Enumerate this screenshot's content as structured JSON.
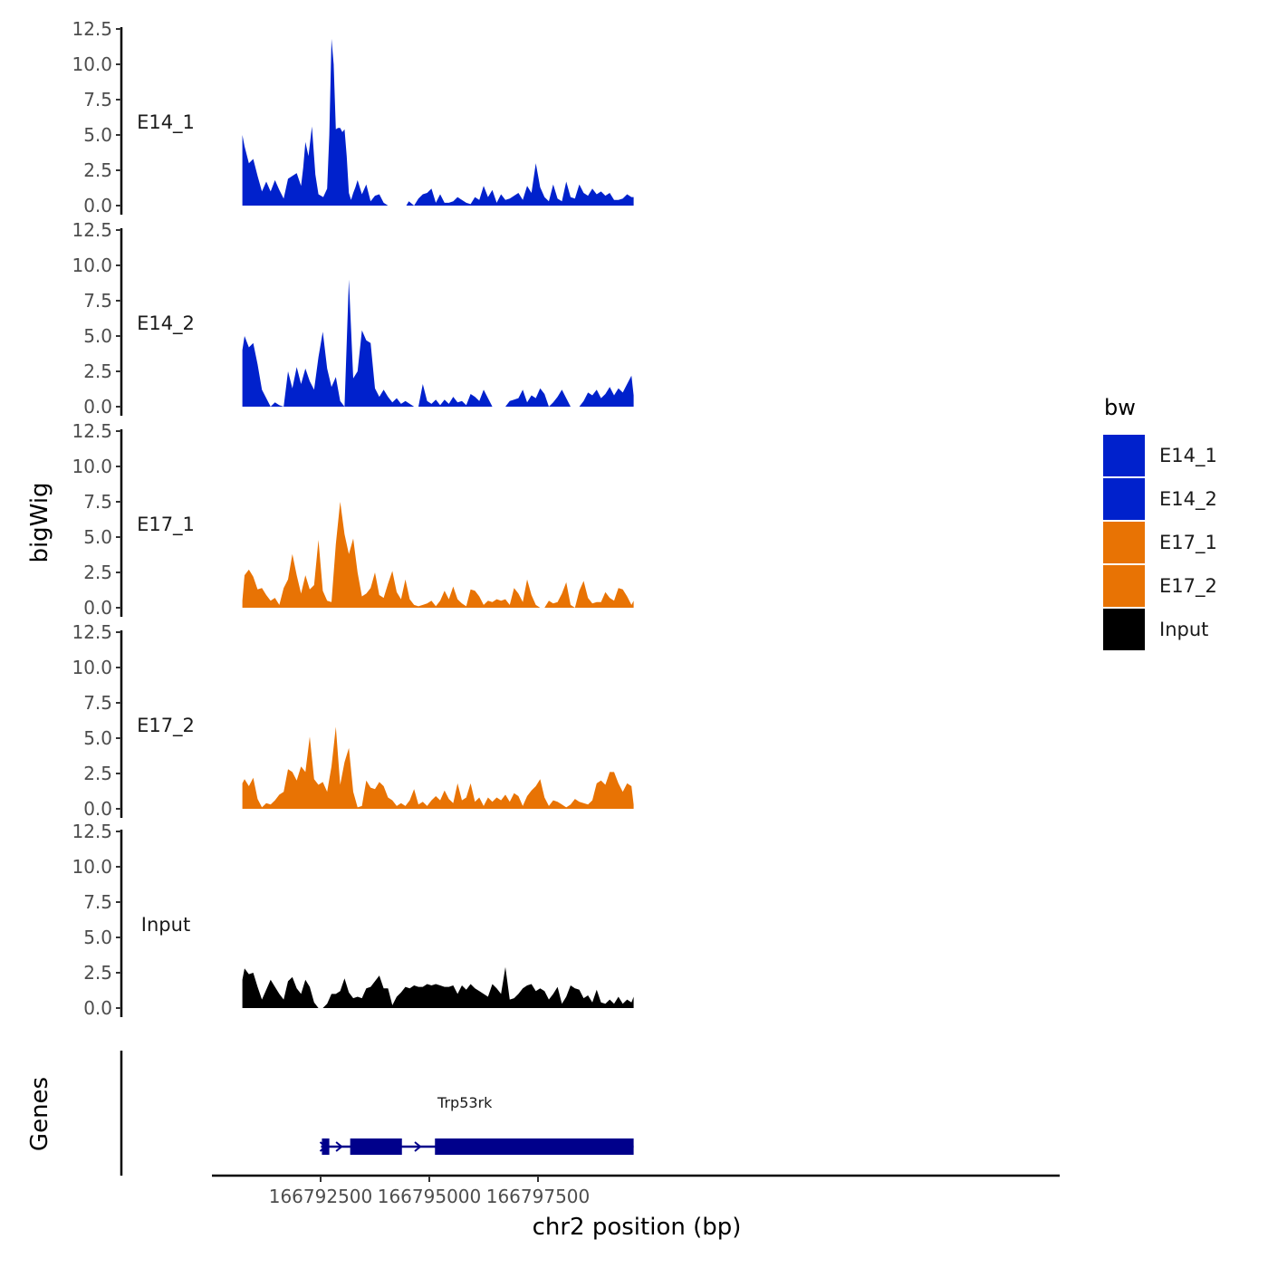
{
  "chart_data": {
    "type": "area",
    "y_label": "bigWig",
    "x_label": "chr2 position (bp)",
    "genes_label": "Genes",
    "x_range": [
      166790000,
      166809500
    ],
    "y_range": [
      0,
      12.5
    ],
    "y_ticks": [
      "0.0",
      "2.5",
      "5.0",
      "7.5",
      "10.0",
      "12.5"
    ],
    "x_ticks": [
      {
        "value": 166792500,
        "label": "166792500"
      },
      {
        "value": 166795000,
        "label": "166795000"
      },
      {
        "value": 166797500,
        "label": "166797500"
      }
    ],
    "legend": {
      "title": "bw",
      "entries": [
        {
          "name": "E14_1",
          "color": "#0021CC"
        },
        {
          "name": "E14_2",
          "color": "#0021CC"
        },
        {
          "name": "E17_1",
          "color": "#E87304"
        },
        {
          "name": "E17_2",
          "color": "#E87304"
        },
        {
          "name": "Input",
          "color": "#000000"
        }
      ]
    },
    "tracks": [
      {
        "name": "E14_1",
        "color": "#0021CC",
        "x": [
          166790700,
          166790750,
          166790850,
          166790950,
          166791050,
          166791150,
          166791250,
          166791350,
          166791450,
          166791550,
          166791650,
          166791750,
          166791850,
          166791950,
          166792050,
          166792100,
          166792150,
          166792220,
          166792300,
          166792380,
          166792450,
          166792560,
          166792650,
          166792700,
          166792750,
          166792800,
          166792850,
          166792900,
          166792950,
          166793000,
          166793050,
          166793100,
          166793150,
          166793200,
          166793250,
          166793300,
          166793350,
          166793450,
          166793550,
          166793650,
          166793750,
          166793850,
          166793950,
          166794050,
          166794100,
          166794150,
          166794270,
          166794470,
          166794530,
          166794650,
          166794750,
          166794850,
          166794950,
          166795050,
          166795150,
          166795250,
          166795350,
          166795450,
          166795550,
          166795650,
          166795750,
          166795850,
          166795950,
          166796050,
          166796150,
          166796250,
          166796350,
          166796450,
          166796550,
          166796650,
          166796750,
          166796850,
          166796950,
          166797050,
          166797150,
          166797250,
          166797350,
          166797450,
          166797550,
          166797650,
          166797750,
          166797850,
          166797950,
          166798050,
          166798150,
          166798250,
          166798350,
          166798450,
          166798550,
          166798650,
          166798750,
          166798850,
          166798950,
          166799050,
          166799150,
          166799250,
          166799350,
          166799450,
          166799550,
          166799650,
          166799700
        ],
        "y": [
          5.0,
          4.2,
          3.0,
          3.3,
          2.1,
          1.0,
          1.7,
          1.0,
          1.8,
          1.1,
          0.5,
          1.9,
          2.1,
          2.3,
          1.4,
          2.7,
          4.5,
          3.5,
          5.6,
          2.2,
          0.8,
          0.6,
          1.2,
          5.0,
          11.8,
          10.0,
          5.4,
          5.5,
          5.5,
          5.2,
          5.4,
          3.5,
          0.9,
          0.4,
          0.9,
          1.3,
          1.8,
          0.8,
          1.5,
          0.3,
          0.7,
          0.8,
          0.2,
          0.0,
          0.0,
          0.0,
          0.0,
          0.0,
          0.3,
          0.0,
          0.5,
          0.8,
          0.9,
          1.2,
          0.2,
          0.8,
          0.2,
          0.2,
          0.3,
          0.6,
          0.4,
          0.2,
          0.1,
          0.6,
          0.4,
          1.4,
          0.6,
          1.1,
          0.2,
          0.8,
          0.4,
          0.5,
          0.7,
          0.9,
          0.4,
          1.4,
          0.9,
          3.0,
          1.3,
          0.6,
          0.3,
          1.5,
          0.5,
          0.3,
          1.7,
          0.6,
          0.5,
          1.5,
          0.9,
          0.7,
          1.2,
          0.8,
          1.0,
          0.7,
          0.9,
          0.4,
          0.4,
          0.5,
          0.8,
          0.6,
          0.6
        ]
      },
      {
        "name": "E14_2",
        "color": "#0021CC",
        "x": [
          166790700,
          166790750,
          166790850,
          166790950,
          166791050,
          166791150,
          166791250,
          166791350,
          166791450,
          166791550,
          166791650,
          166791750,
          166791850,
          166791950,
          166792050,
          166792150,
          166792250,
          166792350,
          166792450,
          166792550,
          166792650,
          166792750,
          166792850,
          166792950,
          166793050,
          166793150,
          166793250,
          166793350,
          166793450,
          166793550,
          166793650,
          166793750,
          166793850,
          166793950,
          166794050,
          166794150,
          166794250,
          166794350,
          166794450,
          166794550,
          166794650,
          166794750,
          166794850,
          166794950,
          166795050,
          166795150,
          166795250,
          166795350,
          166795450,
          166795550,
          166795650,
          166795750,
          166795850,
          166795950,
          166796050,
          166796150,
          166796250,
          166796350,
          166796450,
          166796550,
          166796650,
          166796750,
          166796850,
          166796950,
          166797050,
          166797150,
          166797250,
          166797350,
          166797450,
          166797550,
          166797650,
          166797750,
          166797850,
          166797950,
          166798050,
          166798150,
          166798250,
          166798350,
          166798450,
          166798550,
          166798650,
          166798750,
          166798850,
          166798950,
          166799050,
          166799150,
          166799250,
          166799350,
          166799450,
          166799550,
          166799650,
          166799700
        ],
        "y": [
          4.0,
          5.0,
          4.2,
          4.5,
          3.0,
          1.2,
          0.6,
          0.0,
          0.3,
          0.1,
          0.0,
          2.5,
          1.3,
          2.8,
          1.6,
          2.7,
          1.8,
          1.2,
          3.5,
          5.3,
          2.7,
          1.4,
          2.1,
          0.4,
          0.0,
          9.0,
          2.0,
          2.5,
          5.4,
          4.7,
          4.5,
          1.3,
          0.7,
          1.2,
          0.7,
          0.3,
          0.6,
          0.2,
          0.4,
          0.2,
          0.0,
          0.0,
          1.6,
          0.4,
          0.2,
          0.5,
          0.1,
          0.5,
          0.2,
          0.7,
          0.3,
          0.4,
          0.1,
          0.9,
          0.7,
          0.4,
          1.2,
          0.6,
          0.0,
          0.0,
          0.0,
          0.0,
          0.4,
          0.5,
          0.6,
          1.2,
          0.3,
          0.8,
          0.6,
          1.3,
          0.9,
          0.0,
          0.3,
          0.7,
          1.2,
          0.6,
          0.0,
          0.0,
          0.0,
          0.4,
          1.0,
          0.8,
          1.2,
          0.6,
          0.9,
          1.4,
          0.8,
          1.3,
          1.0,
          1.6,
          2.2,
          0.8
        ]
      },
      {
        "name": "E17_1",
        "color": "#E87304",
        "x": [
          166790700,
          166790750,
          166790850,
          166790950,
          166791050,
          166791150,
          166791250,
          166791350,
          166791450,
          166791550,
          166791650,
          166791750,
          166791850,
          166791950,
          166792050,
          166792150,
          166792250,
          166792350,
          166792450,
          166792550,
          166792650,
          166792750,
          166792850,
          166792950,
          166793050,
          166793150,
          166793250,
          166793350,
          166793450,
          166793550,
          166793650,
          166793750,
          166793850,
          166793950,
          166794050,
          166794150,
          166794250,
          166794350,
          166794450,
          166794550,
          166794650,
          166794750,
          166794850,
          166794950,
          166795050,
          166795150,
          166795250,
          166795350,
          166795450,
          166795550,
          166795650,
          166795750,
          166795850,
          166795950,
          166796050,
          166796150,
          166796250,
          166796350,
          166796450,
          166796550,
          166796650,
          166796750,
          166796850,
          166796950,
          166797050,
          166797150,
          166797250,
          166797350,
          166797450,
          166797550,
          166797650,
          166797750,
          166797850,
          166797950,
          166798050,
          166798150,
          166798250,
          166798350,
          166798450,
          166798550,
          166798650,
          166798750,
          166798850,
          166798950,
          166799050,
          166799150,
          166799250,
          166799350,
          166799450,
          166799550,
          166799650,
          166799700
        ],
        "y": [
          0.5,
          2.3,
          2.7,
          2.2,
          1.3,
          1.4,
          0.9,
          0.5,
          0.7,
          0.2,
          1.4,
          2.0,
          3.8,
          2.3,
          1.0,
          2.3,
          1.3,
          1.6,
          4.8,
          1.2,
          0.5,
          0.4,
          4.5,
          7.5,
          5.2,
          3.8,
          4.9,
          2.5,
          0.8,
          1.0,
          1.4,
          2.5,
          0.9,
          0.7,
          1.7,
          2.6,
          1.1,
          0.6,
          2.0,
          0.6,
          0.2,
          0.1,
          0.2,
          0.3,
          0.5,
          0.1,
          0.5,
          1.2,
          0.6,
          1.5,
          0.6,
          0.3,
          0.1,
          1.3,
          1.2,
          0.8,
          0.2,
          0.5,
          0.4,
          0.6,
          0.5,
          0.6,
          0.2,
          1.4,
          1.0,
          0.4,
          2.0,
          0.9,
          0.2,
          0.0,
          0.0,
          0.5,
          0.3,
          0.4,
          1.0,
          1.8,
          0.2,
          0.0,
          1.2,
          1.9,
          0.7,
          0.3,
          0.4,
          0.4,
          1.1,
          0.7,
          0.5,
          1.4,
          1.3,
          0.8,
          0.2,
          0.5
        ]
      },
      {
        "name": "E17_2",
        "color": "#E87304",
        "x": [
          166790700,
          166790750,
          166790850,
          166790950,
          166791050,
          166791150,
          166791250,
          166791350,
          166791450,
          166791550,
          166791650,
          166791750,
          166791850,
          166791950,
          166792050,
          166792150,
          166792250,
          166792350,
          166792450,
          166792550,
          166792650,
          166792750,
          166792850,
          166792950,
          166793050,
          166793150,
          166793250,
          166793350,
          166793450,
          166793550,
          166793650,
          166793750,
          166793850,
          166793950,
          166794050,
          166794150,
          166794250,
          166794350,
          166794450,
          166794550,
          166794650,
          166794750,
          166794850,
          166794950,
          166795050,
          166795150,
          166795250,
          166795350,
          166795450,
          166795550,
          166795650,
          166795750,
          166795850,
          166795950,
          166796050,
          166796150,
          166796250,
          166796350,
          166796450,
          166796550,
          166796650,
          166796750,
          166796850,
          166796950,
          166797050,
          166797150,
          166797250,
          166797350,
          166797450,
          166797550,
          166797650,
          166797750,
          166797850,
          166797950,
          166798050,
          166798150,
          166798250,
          166798350,
          166798450,
          166798550,
          166798650,
          166798750,
          166798850,
          166798950,
          166799050,
          166799150,
          166799250,
          166799350,
          166799450,
          166799550,
          166799650,
          166799700
        ],
        "y": [
          1.8,
          2.1,
          1.6,
          2.2,
          0.7,
          0.1,
          0.4,
          0.3,
          0.6,
          1.0,
          1.2,
          2.8,
          2.6,
          2.0,
          3.0,
          2.6,
          5.1,
          2.1,
          1.7,
          1.9,
          1.2,
          3.0,
          5.8,
          1.7,
          3.3,
          4.3,
          1.2,
          0.1,
          0.2,
          2.0,
          1.5,
          1.4,
          1.9,
          1.6,
          0.8,
          0.6,
          0.2,
          0.4,
          0.2,
          0.6,
          1.4,
          0.3,
          0.5,
          0.2,
          0.6,
          0.9,
          0.6,
          1.3,
          0.7,
          0.4,
          1.8,
          0.6,
          0.8,
          1.8,
          0.5,
          0.8,
          0.2,
          0.8,
          0.5,
          0.8,
          0.6,
          1.0,
          0.5,
          1.1,
          0.9,
          0.2,
          0.9,
          1.3,
          1.6,
          2.1,
          0.8,
          0.2,
          0.6,
          0.5,
          0.3,
          0.1,
          0.3,
          0.7,
          0.5,
          0.4,
          0.3,
          0.6,
          1.8,
          2.0,
          1.7,
          2.6,
          2.6,
          1.8,
          1.2,
          1.8,
          1.6,
          0.3
        ]
      },
      {
        "name": "Input",
        "color": "#000000",
        "x": [
          166790700,
          166790750,
          166790850,
          166790950,
          166791050,
          166791150,
          166791250,
          166791350,
          166791450,
          166791550,
          166791650,
          166791750,
          166791850,
          166791950,
          166792050,
          166792150,
          166792250,
          166792350,
          166792450,
          166792550,
          166792650,
          166792750,
          166792850,
          166792950,
          166793050,
          166793150,
          166793250,
          166793350,
          166793450,
          166793550,
          166793650,
          166793750,
          166793850,
          166793950,
          166794050,
          166794150,
          166794250,
          166794350,
          166794450,
          166794550,
          166794650,
          166794750,
          166794850,
          166794950,
          166795050,
          166795150,
          166795250,
          166795350,
          166795450,
          166795550,
          166795650,
          166795750,
          166795850,
          166795950,
          166796050,
          166796150,
          166796250,
          166796350,
          166796450,
          166796550,
          166796650,
          166796750,
          166796850,
          166796950,
          166797050,
          166797150,
          166797250,
          166797350,
          166797450,
          166797550,
          166797650,
          166797750,
          166797850,
          166797950,
          166798050,
          166798150,
          166798250,
          166798350,
          166798450,
          166798550,
          166798650,
          166798750,
          166798850,
          166798950,
          166799050,
          166799150,
          166799250,
          166799350,
          166799450,
          166799550,
          166799650,
          166799700
        ],
        "y": [
          2.0,
          2.8,
          2.4,
          2.5,
          1.5,
          0.6,
          1.3,
          2.0,
          1.5,
          1.0,
          0.6,
          1.9,
          2.2,
          1.4,
          1.0,
          2.0,
          1.5,
          0.4,
          0.0,
          0.0,
          0.3,
          1.0,
          1.0,
          1.2,
          2.1,
          1.1,
          0.7,
          0.8,
          0.7,
          1.4,
          1.5,
          1.9,
          2.3,
          1.4,
          1.4,
          0.2,
          0.8,
          1.1,
          1.5,
          1.4,
          1.6,
          1.5,
          1.5,
          1.7,
          1.6,
          1.7,
          1.6,
          1.5,
          1.5,
          1.6,
          1.0,
          1.6,
          1.3,
          1.7,
          1.4,
          1.2,
          1.0,
          0.8,
          1.7,
          1.4,
          1.0,
          2.9,
          0.6,
          0.7,
          1.0,
          1.4,
          1.6,
          1.7,
          1.2,
          1.4,
          1.2,
          0.6,
          1.0,
          1.5,
          0.3,
          0.8,
          1.6,
          1.4,
          1.3,
          0.7,
          0.9,
          0.4,
          1.3,
          0.4,
          0.3,
          0.6,
          0.3,
          0.8,
          0.3,
          0.6,
          0.4,
          0.8
        ]
      }
    ],
    "gene": {
      "name": "Trp53rk",
      "color": "#00008B",
      "start": 166792510,
      "end": 166799700,
      "strand": "+",
      "exons": [
        {
          "start": 166792530,
          "end": 166792700
        },
        {
          "start": 166793180,
          "end": 166794370
        },
        {
          "start": 166795130,
          "end": 166799700
        }
      ]
    }
  }
}
